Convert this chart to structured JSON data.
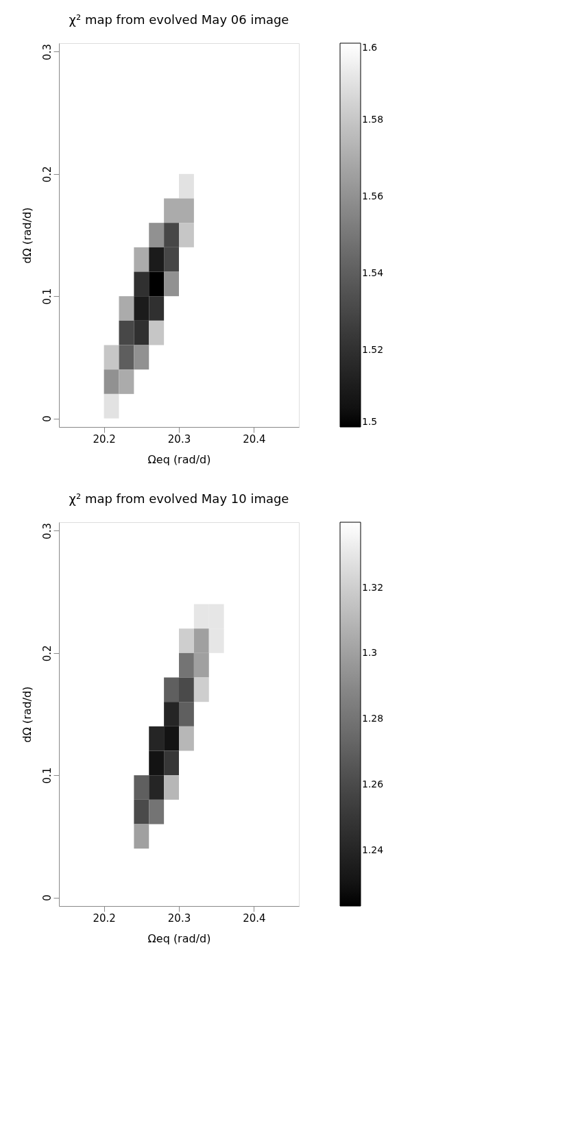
{
  "chart_data": [
    {
      "type": "heatmap",
      "title": "χ² map from evolved May 06 image",
      "xlabel": "Ωeq (rad/d)",
      "ylabel": "dΩ (rad/d)",
      "x": [
        20.15,
        20.17,
        20.19,
        20.21,
        20.23,
        20.25,
        20.27,
        20.29,
        20.31,
        20.33,
        20.35,
        20.37,
        20.39,
        20.41,
        20.43,
        20.45
      ],
      "y": [
        0.19,
        0.17,
        0.15,
        0.13,
        0.11,
        0.09,
        0.07,
        0.05,
        0.03,
        0.01
      ],
      "cells": [
        [
          null,
          null,
          null,
          null,
          null,
          null,
          null,
          null,
          1.59,
          null,
          null,
          null,
          null,
          null,
          null,
          null
        ],
        [
          null,
          null,
          null,
          null,
          null,
          null,
          null,
          1.57,
          1.57,
          null,
          null,
          null,
          null,
          null,
          null,
          null
        ],
        [
          null,
          null,
          null,
          null,
          null,
          null,
          1.56,
          1.53,
          1.58,
          null,
          null,
          null,
          null,
          null,
          null,
          null
        ],
        [
          null,
          null,
          null,
          null,
          null,
          1.57,
          1.51,
          1.53,
          null,
          null,
          null,
          null,
          null,
          null,
          null,
          null
        ],
        [
          null,
          null,
          null,
          null,
          null,
          1.52,
          1.5,
          1.56,
          null,
          null,
          null,
          null,
          null,
          null,
          null,
          null
        ],
        [
          null,
          null,
          null,
          null,
          1.57,
          1.51,
          1.52,
          null,
          null,
          null,
          null,
          null,
          null,
          null,
          null,
          null
        ],
        [
          null,
          null,
          null,
          null,
          1.53,
          1.52,
          1.58,
          null,
          null,
          null,
          null,
          null,
          null,
          null,
          null,
          null
        ],
        [
          null,
          null,
          null,
          1.58,
          1.54,
          1.56,
          null,
          null,
          null,
          null,
          null,
          null,
          null,
          null,
          null,
          null
        ],
        [
          null,
          null,
          null,
          1.56,
          1.57,
          null,
          null,
          null,
          null,
          null,
          null,
          null,
          null,
          null,
          null,
          null
        ],
        [
          null,
          null,
          null,
          1.59,
          null,
          null,
          null,
          null,
          null,
          null,
          null,
          null,
          null,
          null,
          null,
          null
        ]
      ],
      "xlim": [
        20.14,
        20.46
      ],
      "xticks": [
        20.2,
        20.3,
        20.4
      ],
      "ylim": [
        -0.007,
        0.307
      ],
      "yticks": [
        0,
        0.1,
        0.2,
        0.3
      ],
      "clim": [
        1.5,
        1.6
      ],
      "cticks": [
        1.5,
        1.52,
        1.54,
        1.56,
        1.58,
        1.6
      ]
    },
    {
      "type": "heatmap",
      "title": "χ² map from evolved May 10 image",
      "xlabel": "Ωeq (rad/d)",
      "ylabel": "dΩ (rad/d)",
      "x": [
        20.15,
        20.17,
        20.19,
        20.21,
        20.23,
        20.25,
        20.27,
        20.29,
        20.31,
        20.33,
        20.35,
        20.37,
        20.39,
        20.41,
        20.43,
        20.45
      ],
      "y": [
        0.23,
        0.21,
        0.19,
        0.17,
        0.15,
        0.13,
        0.11,
        0.09,
        0.07,
        0.05
      ],
      "cells": [
        [
          null,
          null,
          null,
          null,
          null,
          null,
          null,
          null,
          null,
          1.33,
          1.33,
          null,
          null,
          null,
          null,
          null
        ],
        [
          null,
          null,
          null,
          null,
          null,
          null,
          null,
          null,
          1.32,
          1.3,
          1.33,
          null,
          null,
          null,
          null,
          null
        ],
        [
          null,
          null,
          null,
          null,
          null,
          null,
          null,
          null,
          1.28,
          1.3,
          null,
          null,
          null,
          null,
          null,
          null
        ],
        [
          null,
          null,
          null,
          null,
          null,
          null,
          null,
          1.27,
          1.26,
          1.32,
          null,
          null,
          null,
          null,
          null,
          null
        ],
        [
          null,
          null,
          null,
          null,
          null,
          null,
          null,
          1.24,
          1.27,
          null,
          null,
          null,
          null,
          null,
          null,
          null
        ],
        [
          null,
          null,
          null,
          null,
          null,
          null,
          1.24,
          1.23,
          1.31,
          null,
          null,
          null,
          null,
          null,
          null,
          null
        ],
        [
          null,
          null,
          null,
          null,
          null,
          null,
          1.23,
          1.25,
          null,
          null,
          null,
          null,
          null,
          null,
          null,
          null
        ],
        [
          null,
          null,
          null,
          null,
          null,
          1.27,
          1.24,
          1.31,
          null,
          null,
          null,
          null,
          null,
          null,
          null,
          null
        ],
        [
          null,
          null,
          null,
          null,
          null,
          1.26,
          1.28,
          null,
          null,
          null,
          null,
          null,
          null,
          null,
          null,
          null
        ],
        [
          null,
          null,
          null,
          null,
          null,
          1.3,
          null,
          null,
          null,
          null,
          null,
          null,
          null,
          null,
          null,
          null
        ]
      ],
      "xlim": [
        20.14,
        20.46
      ],
      "xticks": [
        20.2,
        20.3,
        20.4
      ],
      "ylim": [
        -0.007,
        0.307
      ],
      "yticks": [
        0,
        0.1,
        0.2,
        0.3
      ],
      "clim": [
        1.223,
        1.34
      ],
      "cticks": [
        1.24,
        1.26,
        1.28,
        1.3,
        1.32
      ]
    }
  ]
}
